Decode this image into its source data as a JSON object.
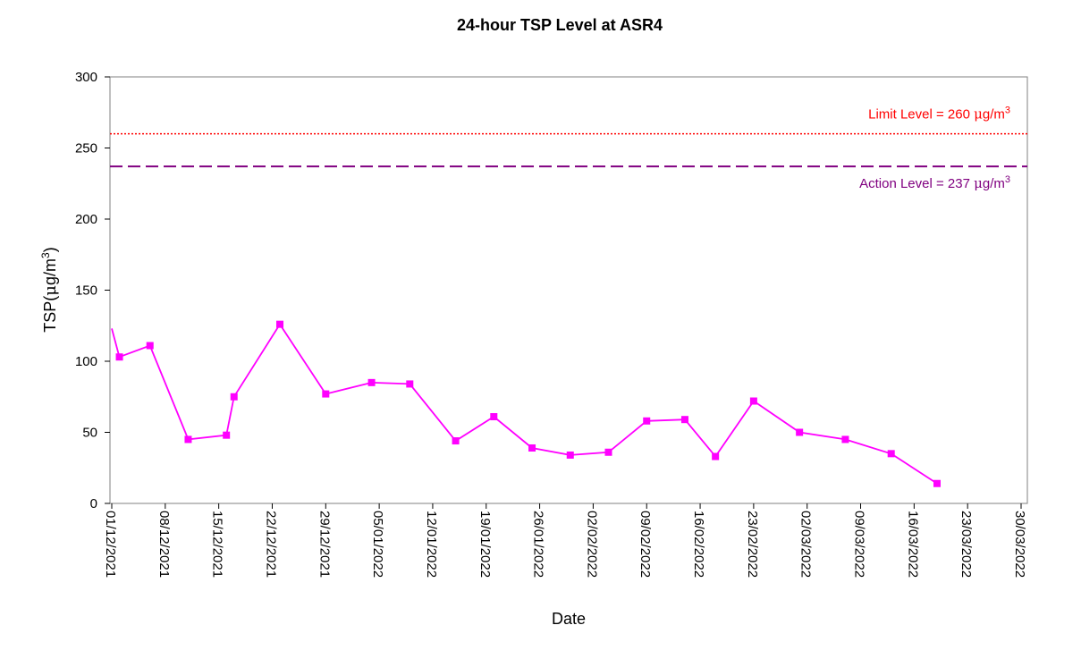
{
  "chart_data": {
    "type": "line",
    "title": "24-hour TSP Level at ASR4",
    "xlabel": "Date",
    "ylabel": {
      "prefix": "TSP(",
      "mu": "μ",
      "unit": "g/m",
      "sup": "3",
      "suffix": ")"
    },
    "ylim": [
      0,
      300
    ],
    "yticks": [
      "0",
      "50",
      "100",
      "150",
      "200",
      "250",
      "300"
    ],
    "xlim": [
      "2021-12-01",
      "2022-03-30"
    ],
    "xticks": [
      "01/12/2021",
      "08/12/2021",
      "15/12/2021",
      "22/12/2021",
      "29/12/2021",
      "05/01/2022",
      "12/01/2022",
      "19/01/2022",
      "26/01/2022",
      "02/02/2022",
      "09/02/2022",
      "16/02/2022",
      "23/02/2022",
      "02/03/2022",
      "09/03/2022",
      "16/03/2022",
      "23/03/2022",
      "30/03/2022"
    ],
    "grid": false,
    "series": [
      {
        "color": "#ff00ff",
        "marker": "square",
        "points": [
          {
            "x": "2021-12-01",
            "y": 123
          },
          {
            "x": "2021-12-02",
            "y": 103
          },
          {
            "x": "2021-12-06",
            "y": 111
          },
          {
            "x": "2021-12-11",
            "y": 45
          },
          {
            "x": "2021-12-16",
            "y": 48
          },
          {
            "x": "2021-12-17",
            "y": 75
          },
          {
            "x": "2021-12-23",
            "y": 126
          },
          {
            "x": "2021-12-29",
            "y": 77
          },
          {
            "x": "2022-01-04",
            "y": 85
          },
          {
            "x": "2022-01-09",
            "y": 84
          },
          {
            "x": "2022-01-15",
            "y": 44
          },
          {
            "x": "2022-01-20",
            "y": 61
          },
          {
            "x": "2022-01-25",
            "y": 39
          },
          {
            "x": "2022-01-30",
            "y": 34
          },
          {
            "x": "2022-02-04",
            "y": 36
          },
          {
            "x": "2022-02-09",
            "y": 58
          },
          {
            "x": "2022-02-14",
            "y": 59
          },
          {
            "x": "2022-02-18",
            "y": 33
          },
          {
            "x": "2022-02-23",
            "y": 72
          },
          {
            "x": "2022-03-01",
            "y": 50
          },
          {
            "x": "2022-03-07",
            "y": 45
          },
          {
            "x": "2022-03-13",
            "y": 35
          },
          {
            "x": "2022-03-19",
            "y": 14
          }
        ]
      }
    ],
    "reference_lines": [
      {
        "value": 260,
        "color": "#ff0000",
        "style": "dotted",
        "label": {
          "text": "Limit Level = 260 ",
          "mu": "μ",
          "unit": "g/m",
          "sup": "3"
        },
        "label_position": "above-right"
      },
      {
        "value": 237,
        "color": "#800080",
        "style": "dashed",
        "label": {
          "text": "Action Level = 237 ",
          "mu": "μ",
          "unit": "g/m",
          "sup": "3"
        },
        "label_position": "below-right"
      }
    ],
    "legend": "none"
  }
}
